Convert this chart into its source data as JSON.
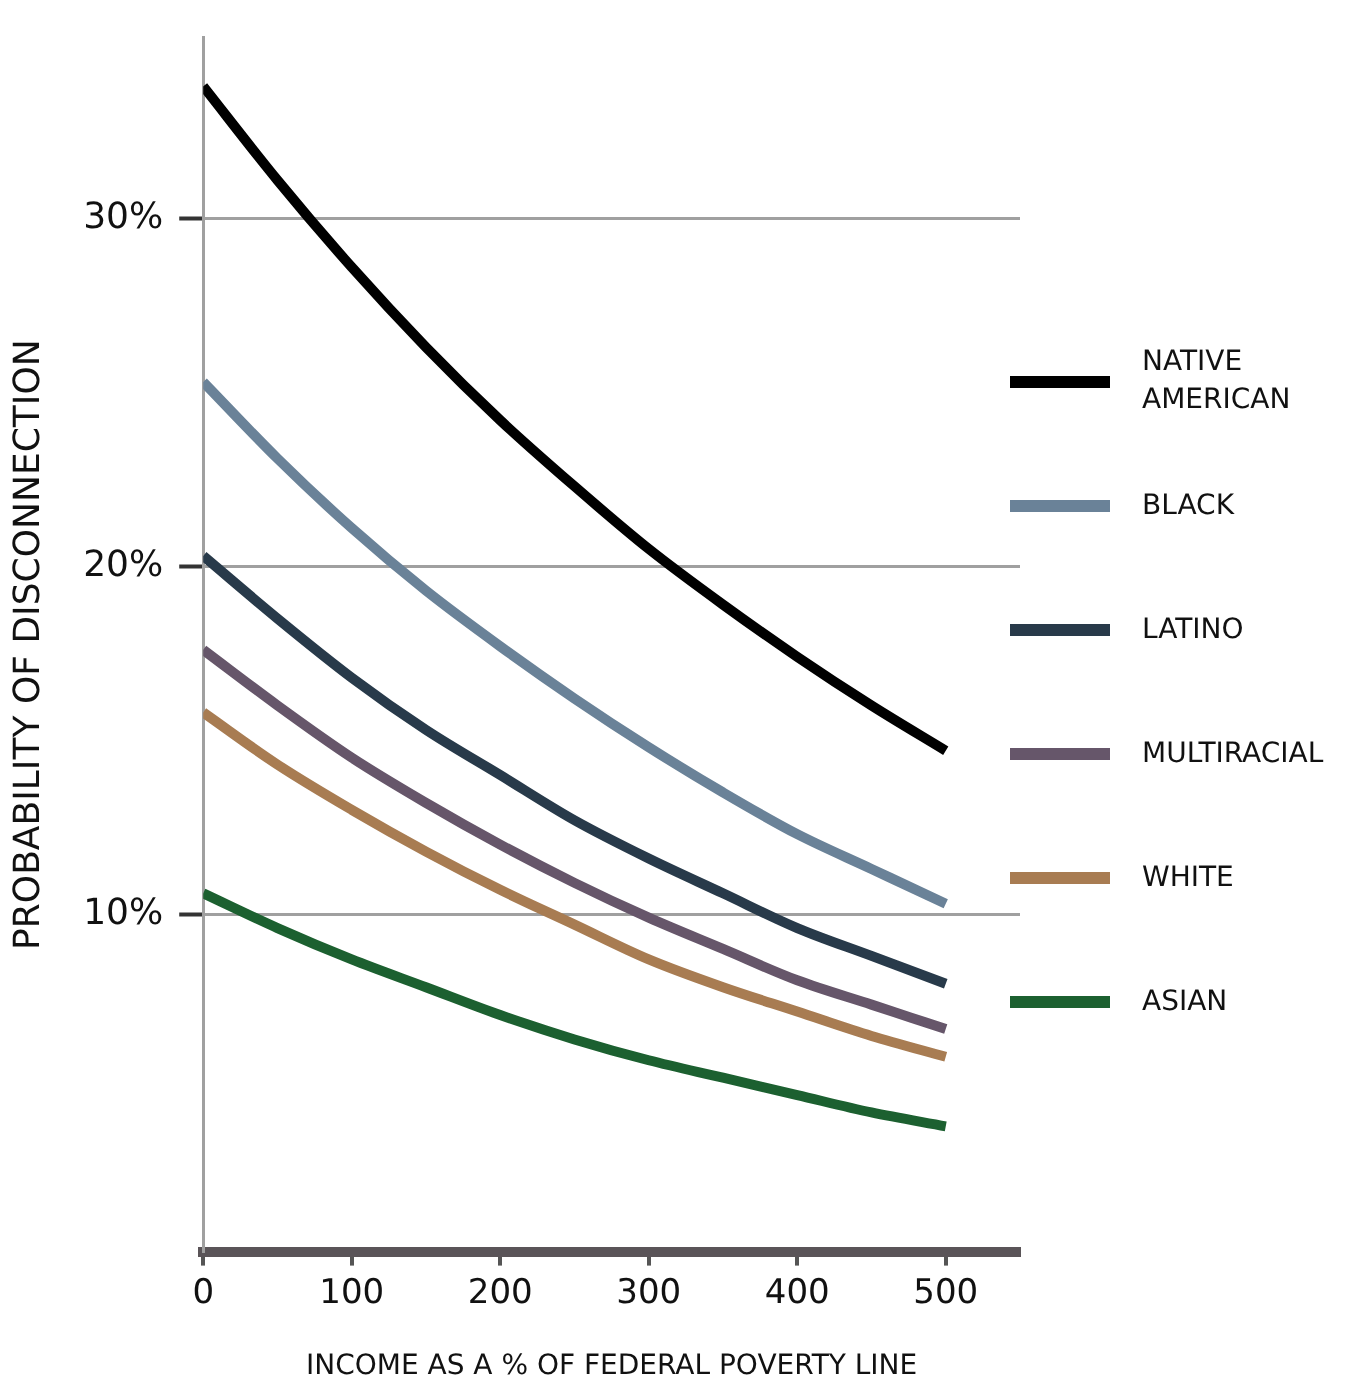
{
  "chart_data": {
    "type": "line",
    "xlabel": "INCOME AS A % OF FEDERAL POVERTY LINE",
    "ylabel": "PROBABILITY OF DISCONNECTION",
    "x": [
      0,
      50,
      100,
      150,
      200,
      250,
      300,
      350,
      400,
      450,
      500
    ],
    "series": [
      {
        "name": "NATIVE AMERICAN",
        "color": "#000000",
        "values": [
          33.8,
          31.1,
          28.6,
          26.3,
          24.2,
          22.3,
          20.5,
          18.9,
          17.4,
          16.0,
          14.7
        ]
      },
      {
        "name": "BLACK",
        "color": "#6a8298",
        "values": [
          25.3,
          23.1,
          21.1,
          19.3,
          17.7,
          16.2,
          14.8,
          13.5,
          12.3,
          11.3,
          10.3
        ]
      },
      {
        "name": "LATINO",
        "color": "#283a4a",
        "values": [
          20.3,
          18.5,
          16.8,
          15.3,
          14.0,
          12.7,
          11.6,
          10.6,
          9.6,
          8.8,
          8.0
        ]
      },
      {
        "name": "MULTIRACIAL",
        "color": "#66566a",
        "values": [
          17.6,
          16.0,
          14.5,
          13.2,
          12.0,
          10.9,
          9.9,
          9.0,
          8.1,
          7.4,
          6.7
        ]
      },
      {
        "name": "WHITE",
        "color": "#a87c52",
        "values": [
          15.8,
          14.3,
          13.0,
          11.8,
          10.7,
          9.7,
          8.7,
          7.9,
          7.2,
          6.5,
          5.9
        ]
      },
      {
        "name": "ASIAN",
        "color": "#1c6030",
        "values": [
          10.6,
          9.6,
          8.7,
          7.9,
          7.1,
          6.4,
          5.8,
          5.3,
          4.8,
          4.3,
          3.9
        ]
      }
    ],
    "xlim": [
      0,
      550
    ],
    "xticks": [
      0,
      100,
      200,
      300,
      400,
      500
    ],
    "ylim": [
      0.3,
      35.2
    ],
    "yticks": [
      {
        "value": 10,
        "label": "10%"
      },
      {
        "value": 20,
        "label": "20%"
      },
      {
        "value": 30,
        "label": "30%"
      }
    ],
    "grid": "y",
    "legend": "right",
    "marker": "none",
    "line_style": "solid"
  }
}
